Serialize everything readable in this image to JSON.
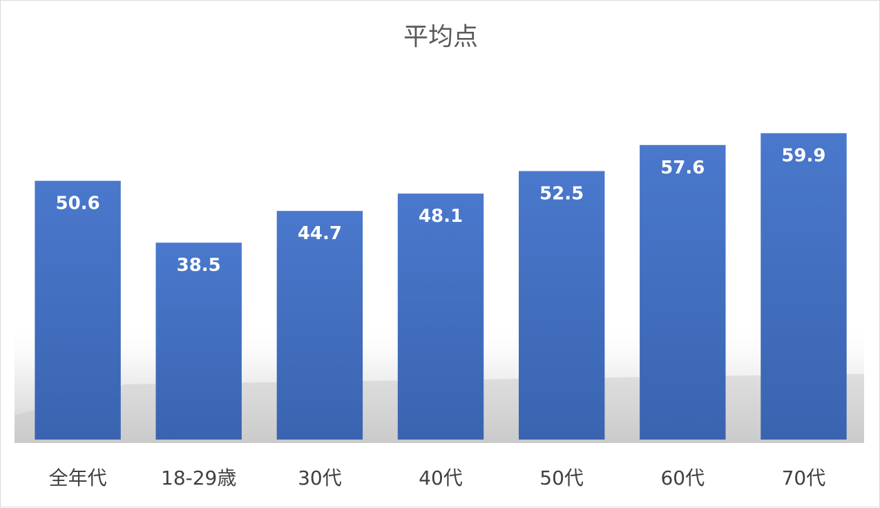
{
  "chart_data": {
    "type": "bar",
    "title": "平均点",
    "categories": [
      "全年代",
      "18-29歳",
      "30代",
      "40代",
      "50代",
      "60代",
      "70代"
    ],
    "values": [
      50.6,
      38.5,
      44.7,
      48.1,
      52.5,
      57.6,
      59.9
    ],
    "xlabel": "",
    "ylabel": "",
    "ylim": [
      0,
      70
    ],
    "grid": false,
    "legend": "none",
    "bar_color": "#4472c4"
  }
}
